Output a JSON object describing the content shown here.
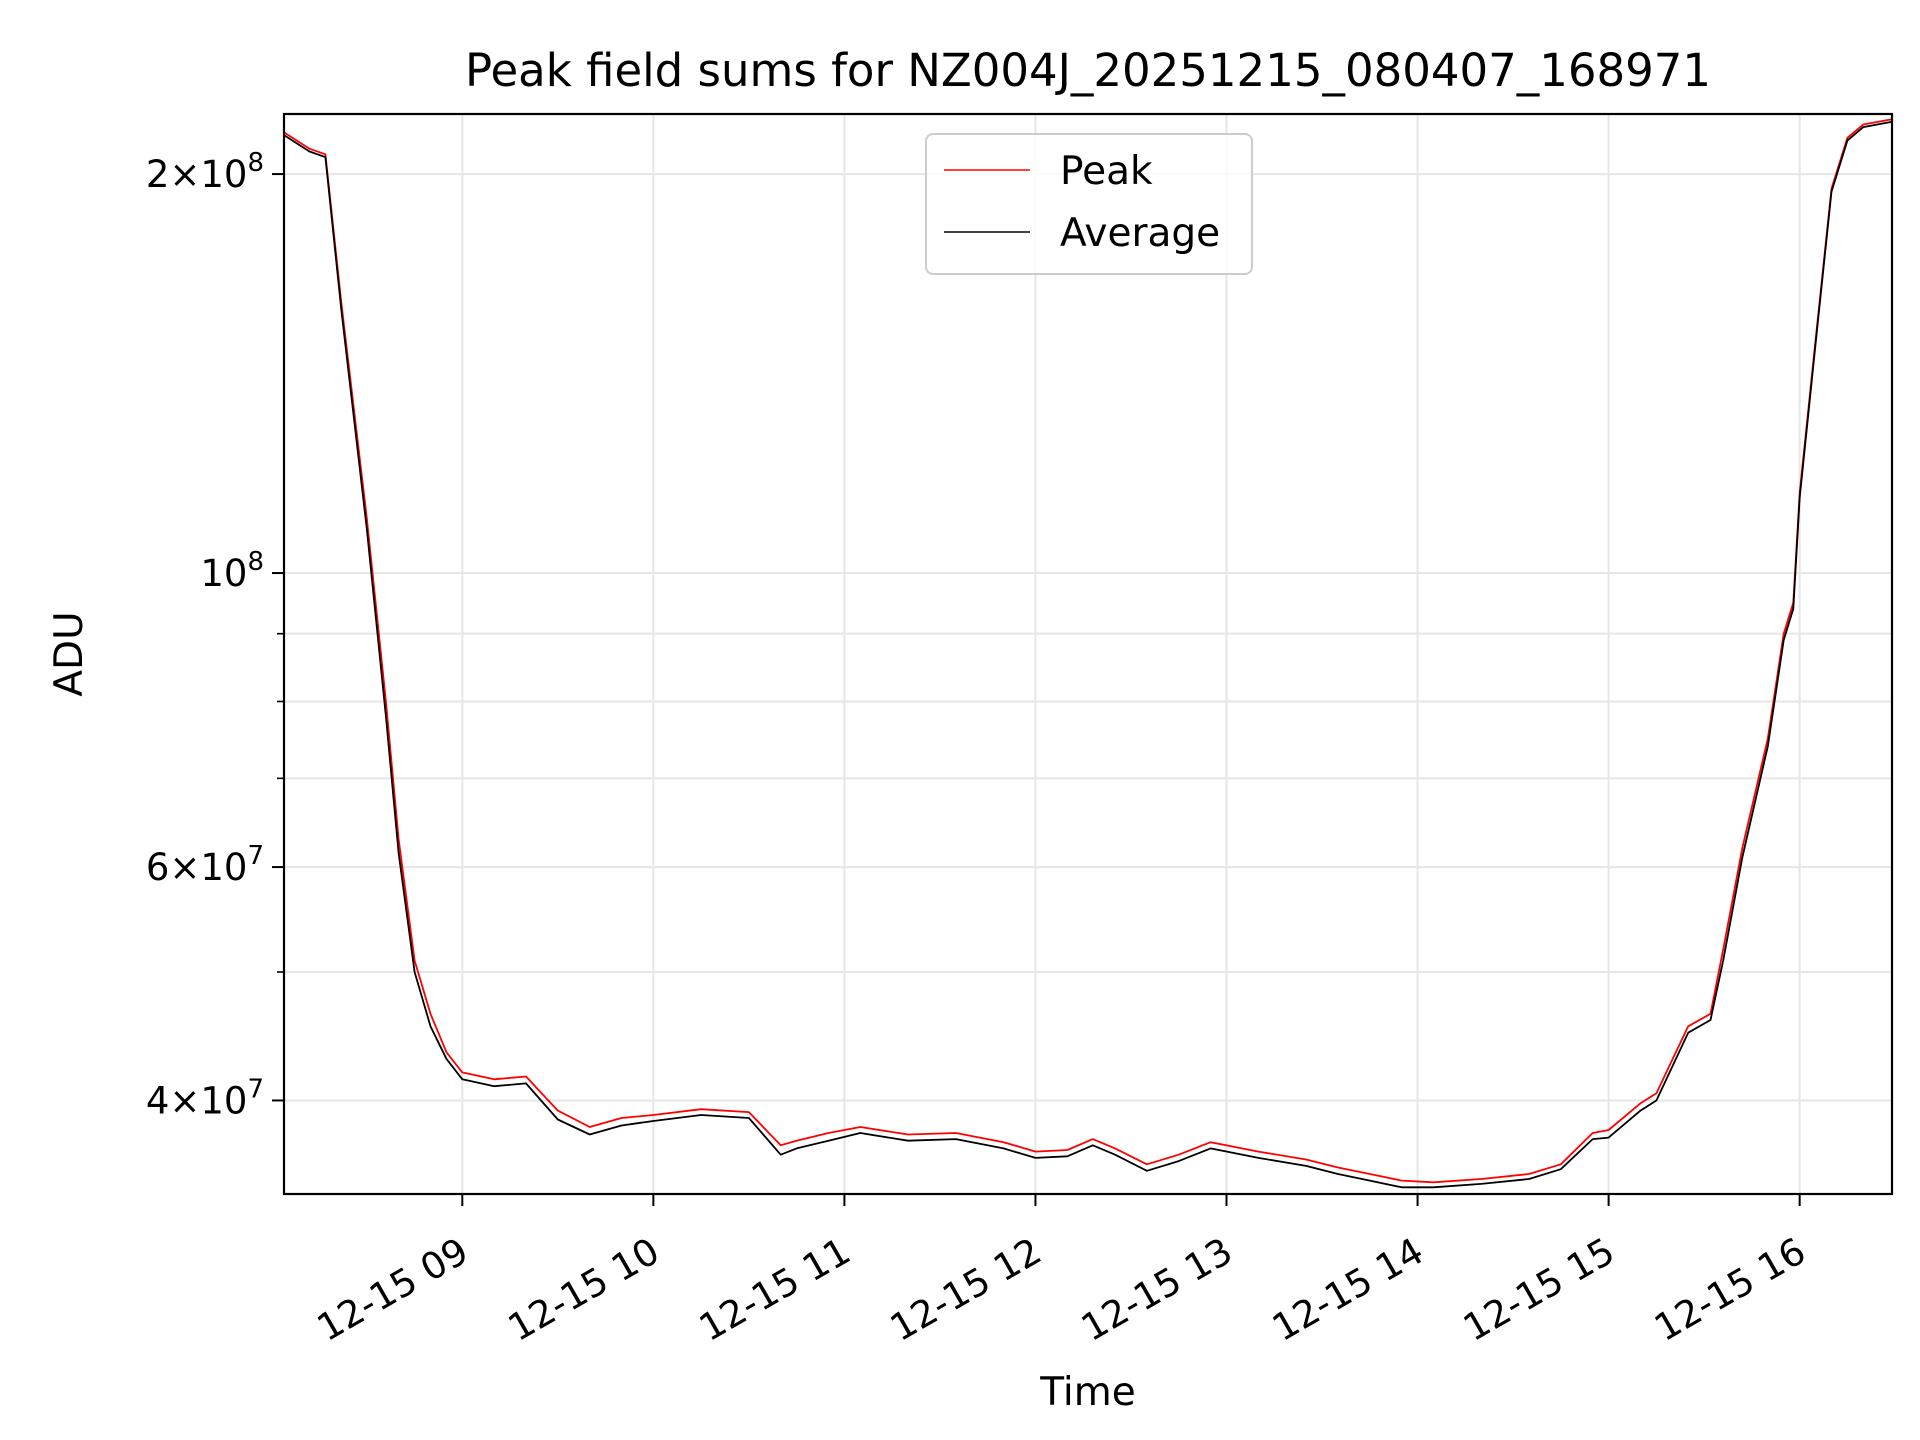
{
  "chart_data": {
    "type": "line",
    "title": "Peak field sums for NZ004J_20251215_080407_168971",
    "xlabel": "Time",
    "ylabel": "ADU",
    "xlim": [
      "2025-12-15 08:04",
      "2025-12-15 16:29"
    ],
    "ylim": [
      34000000,
      222000000
    ],
    "yscale": "log",
    "grid": true,
    "legend_position": "top-center",
    "x_tick_labels": [
      "12-15 09",
      "12-15 10",
      "12-15 11",
      "12-15 12",
      "12-15 13",
      "12-15 14",
      "12-15 15",
      "12-15 16"
    ],
    "x_tick_values": [
      "2025-12-15 09:00",
      "2025-12-15 10:00",
      "2025-12-15 11:00",
      "2025-12-15 12:00",
      "2025-12-15 13:00",
      "2025-12-15 14:00",
      "2025-12-15 15:00",
      "2025-12-15 16:00"
    ],
    "y_major_ticks": [
      {
        "value": 40000000,
        "mantissa": "4",
        "exponent": "7"
      },
      {
        "value": 60000000,
        "mantissa": "6",
        "exponent": "7"
      },
      {
        "value": 100000000,
        "mantissa": "",
        "exponent": "8"
      },
      {
        "value": 200000000,
        "mantissa": "2",
        "exponent": "8"
      }
    ],
    "y_minor_ticks": [
      50000000,
      70000000,
      80000000,
      90000000
    ],
    "series": [
      {
        "name": "Peak",
        "color": "#ff0000",
        "x": [
          "2025-12-15 08:04",
          "2025-12-15 08:12",
          "2025-12-15 08:17",
          "2025-12-15 08:22",
          "2025-12-15 08:30",
          "2025-12-15 08:36",
          "2025-12-15 08:40",
          "2025-12-15 08:45",
          "2025-12-15 08:50",
          "2025-12-15 08:55",
          "2025-12-15 09:00",
          "2025-12-15 09:10",
          "2025-12-15 09:20",
          "2025-12-15 09:30",
          "2025-12-15 09:40",
          "2025-12-15 09:50",
          "2025-12-15 10:00",
          "2025-12-15 10:15",
          "2025-12-15 10:30",
          "2025-12-15 10:40",
          "2025-12-15 10:45",
          "2025-12-15 10:55",
          "2025-12-15 11:05",
          "2025-12-15 11:20",
          "2025-12-15 11:35",
          "2025-12-15 11:50",
          "2025-12-15 12:00",
          "2025-12-15 12:10",
          "2025-12-15 12:18",
          "2025-12-15 12:25",
          "2025-12-15 12:35",
          "2025-12-15 12:45",
          "2025-12-15 12:55",
          "2025-12-15 13:10",
          "2025-12-15 13:25",
          "2025-12-15 13:35",
          "2025-12-15 13:45",
          "2025-12-15 13:55",
          "2025-12-15 14:05",
          "2025-12-15 14:20",
          "2025-12-15 14:35",
          "2025-12-15 14:45",
          "2025-12-15 14:55",
          "2025-12-15 15:00",
          "2025-12-15 15:10",
          "2025-12-15 15:15",
          "2025-12-15 15:25",
          "2025-12-15 15:32",
          "2025-12-15 15:36",
          "2025-12-15 15:42",
          "2025-12-15 15:50",
          "2025-12-15 15:55",
          "2025-12-15 15:58",
          "2025-12-15 16:00",
          "2025-12-15 16:05",
          "2025-12-15 16:10",
          "2025-12-15 16:15",
          "2025-12-15 16:20",
          "2025-12-15 16:29"
        ],
        "y": [
          215000000,
          209000000,
          207000000,
          160000000,
          110000000,
          80000000,
          63000000,
          51000000,
          46500000,
          43500000,
          42000000,
          41500000,
          41700000,
          39300000,
          38200000,
          38800000,
          39000000,
          39400000,
          39200000,
          37000000,
          37300000,
          37800000,
          38200000,
          37700000,
          37800000,
          37200000,
          36600000,
          36700000,
          37400000,
          36800000,
          35800000,
          36400000,
          37200000,
          36600000,
          36100000,
          35600000,
          35200000,
          34800000,
          34700000,
          34900000,
          35200000,
          35800000,
          37800000,
          38000000,
          39800000,
          40500000,
          45500000,
          46500000,
          52000000,
          62000000,
          75000000,
          90000000,
          95000000,
          115000000,
          150000000,
          195000000,
          213000000,
          218000000,
          220000000
        ]
      },
      {
        "name": "Average",
        "color": "#000000",
        "x": [
          "2025-12-15 08:04",
          "2025-12-15 08:12",
          "2025-12-15 08:17",
          "2025-12-15 08:22",
          "2025-12-15 08:30",
          "2025-12-15 08:36",
          "2025-12-15 08:40",
          "2025-12-15 08:45",
          "2025-12-15 08:50",
          "2025-12-15 08:55",
          "2025-12-15 09:00",
          "2025-12-15 09:10",
          "2025-12-15 09:20",
          "2025-12-15 09:30",
          "2025-12-15 09:40",
          "2025-12-15 09:50",
          "2025-12-15 10:00",
          "2025-12-15 10:15",
          "2025-12-15 10:30",
          "2025-12-15 10:40",
          "2025-12-15 10:45",
          "2025-12-15 10:55",
          "2025-12-15 11:05",
          "2025-12-15 11:20",
          "2025-12-15 11:35",
          "2025-12-15 11:50",
          "2025-12-15 12:00",
          "2025-12-15 12:10",
          "2025-12-15 12:18",
          "2025-12-15 12:25",
          "2025-12-15 12:35",
          "2025-12-15 12:45",
          "2025-12-15 12:55",
          "2025-12-15 13:10",
          "2025-12-15 13:25",
          "2025-12-15 13:35",
          "2025-12-15 13:45",
          "2025-12-15 13:55",
          "2025-12-15 14:05",
          "2025-12-15 14:20",
          "2025-12-15 14:35",
          "2025-12-15 14:45",
          "2025-12-15 14:55",
          "2025-12-15 15:00",
          "2025-12-15 15:10",
          "2025-12-15 15:15",
          "2025-12-15 15:25",
          "2025-12-15 15:32",
          "2025-12-15 15:36",
          "2025-12-15 15:42",
          "2025-12-15 15:50",
          "2025-12-15 15:55",
          "2025-12-15 15:58",
          "2025-12-15 16:00",
          "2025-12-15 16:05",
          "2025-12-15 16:10",
          "2025-12-15 16:15",
          "2025-12-15 16:20",
          "2025-12-15 16:29"
        ],
        "y": [
          214000000,
          208000000,
          206000000,
          158000000,
          108000000,
          78000000,
          61500000,
          50000000,
          45500000,
          43000000,
          41500000,
          41000000,
          41200000,
          38700000,
          37700000,
          38300000,
          38600000,
          39000000,
          38800000,
          36400000,
          36800000,
          37300000,
          37800000,
          37300000,
          37400000,
          36800000,
          36200000,
          36300000,
          37000000,
          36400000,
          35400000,
          36000000,
          36800000,
          36200000,
          35700000,
          35200000,
          34800000,
          34400000,
          34400000,
          34600000,
          34900000,
          35500000,
          37400000,
          37500000,
          39300000,
          40000000,
          45000000,
          46000000,
          51000000,
          61000000,
          74000000,
          89000000,
          94000000,
          114000000,
          149000000,
          194000000,
          212000000,
          217000000,
          219000000
        ]
      }
    ]
  }
}
